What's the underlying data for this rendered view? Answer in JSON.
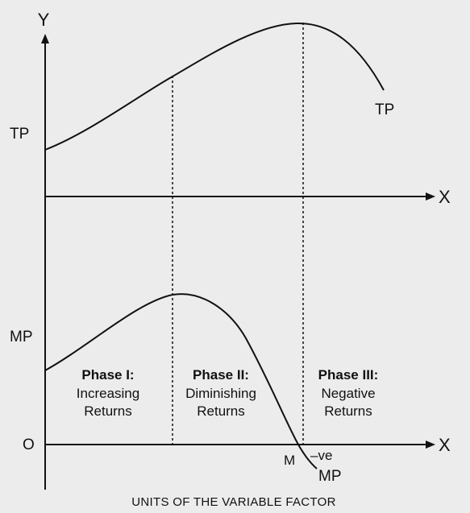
{
  "axes": {
    "y_letter": "Y",
    "x_letter_top": "X",
    "x_letter_bottom": "X",
    "origin": "O",
    "top_panel_label": "TP",
    "bottom_panel_label": "MP",
    "x_axis_caption": "UNITS OF THE VARIABLE FACTOR"
  },
  "curves": {
    "tp_label": "TP",
    "mp_label": "MP",
    "zero_point_label": "M",
    "negative_label": "–ve"
  },
  "phases": [
    {
      "title": "Phase I:",
      "line1": "Increasing",
      "line2": "Returns"
    },
    {
      "title": "Phase II:",
      "line1": "Diminishing",
      "line2": "Returns"
    },
    {
      "title": "Phase III:",
      "line1": "Negative",
      "line2": "Returns"
    }
  ],
  "colors": {
    "background": "#ececec",
    "ink": "#111111"
  }
}
